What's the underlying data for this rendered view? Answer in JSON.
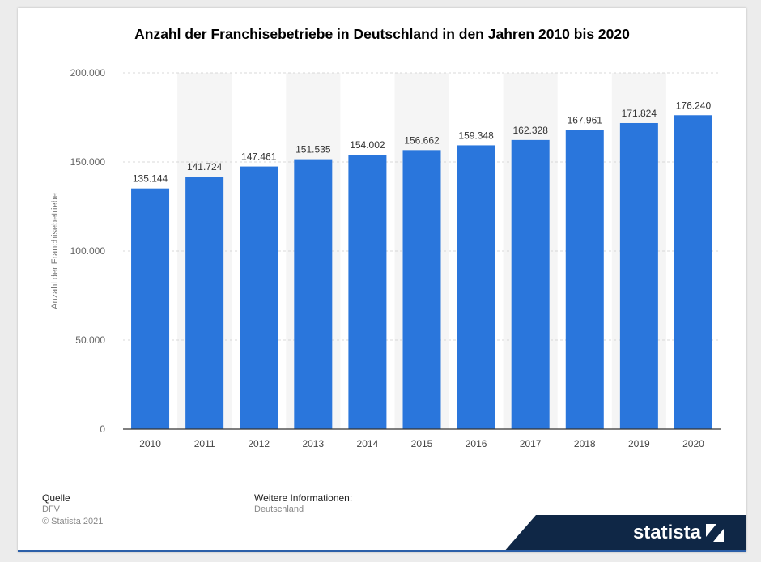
{
  "title": "Anzahl der Franchisebetriebe in Deutschland in den Jahren 2010 bis 2020",
  "footer": {
    "source_heading": "Quelle",
    "source": "DFV",
    "copyright": "© Statista 2021",
    "info_heading": "Weitere Informationen:",
    "info": "Deutschland"
  },
  "brand": {
    "name": "statista",
    "color": "#0f2746"
  },
  "colors": {
    "bar": "#2a76dc",
    "stripe": "#f5f5f5",
    "grid": "#d8d8d8"
  },
  "chart_data": {
    "type": "bar",
    "title": "Anzahl der Franchisebetriebe in Deutschland in den Jahren 2010 bis 2020",
    "xlabel": "",
    "ylabel": "Anzahl der Franchisebetriebe",
    "categories": [
      "2010",
      "2011",
      "2012",
      "2013",
      "2014",
      "2015",
      "2016",
      "2017",
      "2018",
      "2019",
      "2020"
    ],
    "values": [
      135144,
      141724,
      147461,
      151535,
      154002,
      156662,
      159348,
      162328,
      167961,
      171824,
      176240
    ],
    "value_labels": [
      "135.144",
      "141.724",
      "147.461",
      "151.535",
      "154.002",
      "156.662",
      "159.348",
      "162.328",
      "167.961",
      "171.824",
      "176.240"
    ],
    "ylim": [
      0,
      200000
    ],
    "yticks": [
      0,
      50000,
      100000,
      150000,
      200000
    ],
    "ytick_labels": [
      "0",
      "50.000",
      "100.000",
      "150.000",
      "200.000"
    ],
    "grid": true
  }
}
